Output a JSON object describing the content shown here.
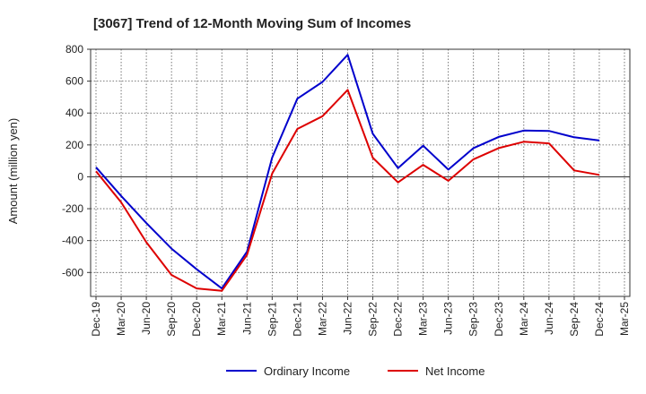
{
  "chart_data": {
    "type": "line",
    "title": "[3067]  Trend of 12-Month Moving Sum of Incomes",
    "xlabel": "",
    "ylabel": "Amount (million yen)",
    "ylim": [
      -750,
      800
    ],
    "yticks": [
      800,
      600,
      400,
      200,
      0,
      -200,
      -400,
      -600
    ],
    "ytick_labels": [
      "800",
      "600",
      "400",
      "200",
      "0",
      "-200",
      "-400",
      "-600"
    ],
    "x_tick_labels": [
      "Dec-19",
      "Mar-20",
      "Jun-20",
      "Sep-20",
      "Dec-20",
      "Mar-21",
      "Jun-21",
      "Sep-21",
      "Dec-21",
      "Mar-22",
      "Jun-22",
      "Sep-22",
      "Dec-22",
      "Mar-23",
      "Jun-23",
      "Sep-23",
      "Dec-23",
      "Mar-24",
      "Jun-24",
      "Sep-24",
      "Dec-24",
      "Mar-25"
    ],
    "grid": true,
    "legend_position": "bottom",
    "series": [
      {
        "name": "Ordinary Income",
        "color": "#0000cc",
        "values": [
          60,
          -120,
          -290,
          -450,
          -580,
          -700,
          -470,
          120,
          490,
          595,
          765,
          270,
          55,
          195,
          45,
          180,
          250,
          290,
          288,
          248,
          228
        ]
      },
      {
        "name": "Net Income",
        "color": "#dd0000",
        "values": [
          35,
          -160,
          -410,
          -615,
          -700,
          -715,
          -490,
          20,
          300,
          380,
          545,
          120,
          -35,
          75,
          -25,
          110,
          180,
          220,
          210,
          40,
          12
        ]
      }
    ]
  }
}
